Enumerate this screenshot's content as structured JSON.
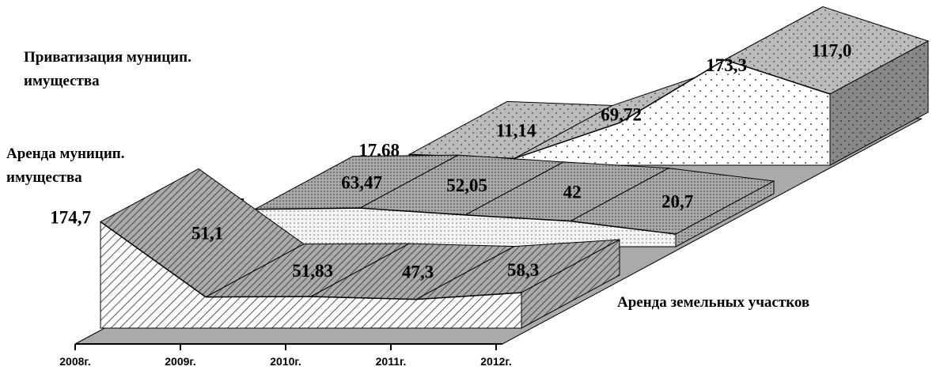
{
  "chart_data": {
    "type": "area3d",
    "categories": [
      "2008г.",
      "2009г.",
      "2010г.",
      "2011г.",
      "2012г."
    ],
    "series": [
      {
        "name": "Аренда земельных участков",
        "values": [
          174.7,
          51.1,
          51.83,
          47.3,
          58.3
        ],
        "value_labels": [
          "174,7",
          "51,1",
          "51,83",
          "47,3",
          "58,3"
        ]
      },
      {
        "name": "Аренда муницип. имущества",
        "values": [
          61.5,
          63.47,
          52.05,
          42,
          20.7
        ],
        "value_labels": [
          "61,5",
          "63,47",
          "52,05",
          "42",
          "20,7"
        ]
      },
      {
        "name": "Приватизация муницип. имущества",
        "values": [
          17.68,
          11.14,
          69.72,
          173.3,
          117.0
        ],
        "value_labels": [
          "17,68",
          "11,14",
          "69,72",
          "173,3",
          "117,0"
        ]
      }
    ]
  }
}
